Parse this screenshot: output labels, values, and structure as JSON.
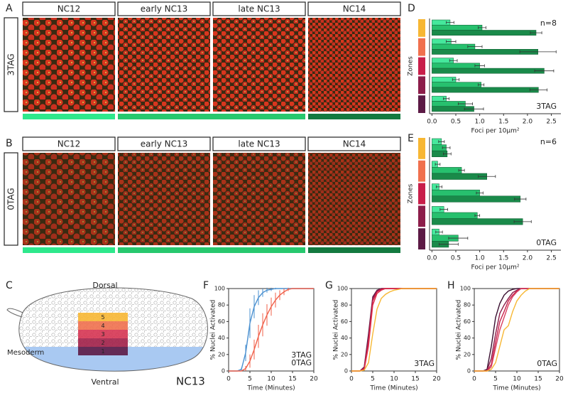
{
  "panels": {
    "a": "A",
    "b": "B",
    "c": "C",
    "d": "D",
    "e": "E",
    "f": "F",
    "g": "G",
    "h": "H"
  },
  "microscopy": [
    {
      "label": "3TAG",
      "label_color": "#4a90d0",
      "stages": [
        "NC12",
        "early NC13",
        "late NC13",
        "NC14"
      ]
    },
    {
      "label": "0TAG",
      "label_color": "#d0453a",
      "stages": [
        "NC12",
        "early NC13",
        "late NC13",
        "NC14"
      ]
    }
  ],
  "embryo": {
    "dorsal": "Dorsal",
    "ventral": "Ventral",
    "mesoderm": "Mesoderm",
    "stage": "NC13",
    "zones": [
      "5",
      "4",
      "3",
      "2",
      "1"
    ],
    "zone_colors": [
      "#f7b733",
      "#f0704e",
      "#d63452",
      "#a11f48",
      "#5c1a45"
    ]
  },
  "chart_data": [
    {
      "type": "bar",
      "orientation": "horizontal",
      "y_label": "Zones",
      "x_label": "Foci per 10μm²",
      "categories": [
        null,
        null,
        null,
        null,
        null
      ],
      "category_colors": [
        "#f7b733",
        "#f0704e",
        "#c81e4a",
        "#8c1d4a",
        "#5c1a45"
      ],
      "series": [
        {
          "color": "#45e89c",
          "values": [
            0.38,
            0.4,
            0.45,
            0.5,
            0.3
          ],
          "errors": [
            0.08,
            0.1,
            0.08,
            0.07,
            0.06
          ]
        },
        {
          "color": "#27c06e",
          "values": [
            1.05,
            0.9,
            1.0,
            1.03,
            0.7
          ],
          "errors": [
            0.08,
            0.15,
            0.1,
            0.06,
            0.15
          ]
        },
        {
          "color": "#1a8a4a",
          "values": [
            2.18,
            2.22,
            2.35,
            2.23,
            0.88
          ],
          "errors": [
            0.12,
            0.38,
            0.2,
            0.18,
            0.2
          ]
        }
      ],
      "xlim": [
        -0.05,
        2.7
      ],
      "xticks": [
        {
          "value": 0,
          "label": "0.0"
        },
        0.5,
        {
          "value": 1,
          "label": "1.0"
        },
        1.5,
        {
          "value": 2,
          "label": "2.0"
        },
        2.5
      ],
      "annotations": [
        {
          "text": "n=8",
          "color": "#222"
        },
        {
          "text": "3TAG",
          "color": "#4a90d0"
        }
      ]
    },
    {
      "type": "bar",
      "orientation": "horizontal",
      "y_label": "Zones",
      "x_label": "Foci per 10μm²",
      "categories": [
        null,
        null,
        null,
        null,
        null
      ],
      "category_colors": [
        "#f7b733",
        "#f0704e",
        "#c81e4a",
        "#8c1d4a",
        "#5c1a45"
      ],
      "series": [
        {
          "color": "#45e89c",
          "values": [
            0.2,
            0.12,
            0.15,
            0.25,
            0.15
          ],
          "errors": [
            0.06,
            0.05,
            0.06,
            0.08,
            0.07
          ]
        },
        {
          "color": "#27c06e",
          "values": [
            0.3,
            0.62,
            1.0,
            0.95,
            0.55
          ],
          "errors": [
            0.08,
            0.06,
            0.07,
            0.05,
            0.2
          ]
        },
        {
          "color": "#1a8a4a",
          "values": [
            0.32,
            1.15,
            1.85,
            1.9,
            0.35
          ],
          "errors": [
            0.08,
            0.18,
            0.12,
            0.18,
            0.2
          ]
        }
      ],
      "xlim": [
        -0.05,
        2.7
      ],
      "xticks": [
        {
          "value": 0,
          "label": "0.0"
        },
        0.5,
        {
          "value": 1,
          "label": "1.0"
        },
        1.5,
        {
          "value": 2,
          "label": "2.0"
        },
        2.5
      ],
      "annotations": [
        {
          "text": "n=6",
          "color": "#222"
        },
        {
          "text": "0TAG",
          "color": "#d0453a"
        }
      ]
    },
    {
      "type": "line",
      "y_label": "% Nuclei Activated",
      "x_label": "Time (Minutes)",
      "x": [
        0,
        1,
        2,
        3,
        4,
        5,
        6,
        7,
        8,
        9,
        10,
        11,
        12,
        13,
        14,
        15,
        16,
        17,
        18,
        19,
        20
      ],
      "series": [
        {
          "name": "3TAG",
          "color": "#4a90d0",
          "values": [
            0,
            0,
            0,
            2,
            22,
            58,
            78,
            89,
            95,
            98,
            99,
            100,
            100,
            100,
            100,
            100,
            100,
            100,
            100,
            100,
            100
          ],
          "errors": [
            0,
            0,
            0,
            2,
            10,
            18,
            14,
            9,
            5,
            3,
            2,
            1,
            0,
            0,
            0,
            0,
            0,
            0,
            0,
            0,
            0
          ]
        },
        {
          "name": "0TAG",
          "color": "#f0604a",
          "values": [
            0,
            0,
            0,
            0,
            3,
            12,
            26,
            42,
            56,
            68,
            78,
            86,
            92,
            96,
            99,
            100,
            100,
            100,
            100,
            100,
            100
          ],
          "errors": [
            0,
            0,
            0,
            0,
            3,
            8,
            12,
            14,
            14,
            13,
            11,
            9,
            6,
            4,
            2,
            0,
            0,
            0,
            0,
            0,
            0
          ]
        }
      ],
      "xlim": [
        0,
        20
      ],
      "xticks": [
        0,
        5,
        10,
        15,
        20
      ],
      "ylim": [
        0,
        100
      ],
      "yticks": [
        0,
        20,
        40,
        60,
        80,
        100
      ]
    },
    {
      "type": "line",
      "y_label": "% Nuclei Activated",
      "x_label": "Time (Minutes)",
      "x": [
        0,
        1,
        2,
        3,
        4,
        5,
        6,
        7,
        8,
        9,
        10,
        11,
        12,
        13,
        14,
        15,
        16,
        17,
        18,
        19,
        20
      ],
      "series": [
        {
          "color": "#5c1a45",
          "values": [
            0,
            0,
            0,
            5,
            45,
            90,
            98,
            100,
            100,
            100,
            100,
            100,
            100,
            100,
            100,
            100,
            100,
            100,
            100,
            100,
            100
          ]
        },
        {
          "color": "#8c1d4a",
          "values": [
            0,
            0,
            0,
            4,
            40,
            88,
            97,
            100,
            100,
            100,
            100,
            100,
            100,
            100,
            100,
            100,
            100,
            100,
            100,
            100,
            100
          ]
        },
        {
          "color": "#c81e4a",
          "values": [
            0,
            0,
            0,
            3,
            35,
            85,
            96,
            99,
            100,
            100,
            100,
            100,
            100,
            100,
            100,
            100,
            100,
            100,
            100,
            100,
            100
          ]
        },
        {
          "color": "#e0304a",
          "values": [
            0,
            0,
            0,
            2,
            30,
            80,
            94,
            98,
            100,
            100,
            100,
            100,
            100,
            100,
            100,
            100,
            100,
            100,
            100,
            100,
            100
          ]
        },
        {
          "color": "#f7b733",
          "values": [
            0,
            0,
            0,
            1,
            10,
            45,
            75,
            88,
            93,
            96,
            98,
            99,
            100,
            100,
            100,
            100,
            100,
            100,
            100,
            100,
            100
          ]
        }
      ],
      "xlim": [
        0,
        20
      ],
      "xticks": [
        0,
        5,
        10,
        15,
        20
      ],
      "ylim": [
        0,
        100
      ],
      "yticks": [
        0,
        20,
        40,
        60,
        80,
        100
      ],
      "annotations": [
        {
          "text": "3TAG",
          "color": "#4a90d0"
        }
      ]
    },
    {
      "type": "line",
      "y_label": "% Nuclei Activated",
      "x_label": "Time (Minutes)",
      "x": [
        0,
        1,
        2,
        3,
        4,
        5,
        6,
        7,
        8,
        9,
        10,
        11,
        12,
        13,
        14,
        15,
        16,
        17,
        18,
        19,
        20
      ],
      "series": [
        {
          "color": "#3a0f30",
          "values": [
            0,
            0,
            0,
            2,
            30,
            65,
            82,
            92,
            97,
            99,
            100,
            100,
            100,
            100,
            100,
            100,
            100,
            100,
            100,
            100,
            100
          ]
        },
        {
          "color": "#8c1d4a",
          "values": [
            0,
            0,
            0,
            1,
            15,
            45,
            70,
            80,
            88,
            95,
            98,
            100,
            100,
            100,
            100,
            100,
            100,
            100,
            100,
            100,
            100
          ]
        },
        {
          "color": "#c81e4a",
          "values": [
            0,
            0,
            0,
            0,
            8,
            35,
            60,
            72,
            85,
            92,
            97,
            100,
            100,
            100,
            100,
            100,
            100,
            100,
            100,
            100,
            100
          ]
        },
        {
          "color": "#d94060",
          "values": [
            0,
            0,
            0,
            0,
            5,
            28,
            50,
            65,
            80,
            90,
            96,
            100,
            100,
            100,
            100,
            100,
            100,
            100,
            100,
            100,
            100
          ]
        },
        {
          "color": "#f7b733",
          "values": [
            0,
            0,
            0,
            0,
            2,
            10,
            30,
            50,
            55,
            72,
            85,
            92,
            97,
            100,
            100,
            100,
            100,
            100,
            100,
            100,
            100
          ]
        }
      ],
      "xlim": [
        0,
        20
      ],
      "xticks": [
        0,
        5,
        10,
        15,
        20
      ],
      "ylim": [
        0,
        100
      ],
      "yticks": [
        0,
        20,
        40,
        60,
        80,
        100
      ],
      "annotations": [
        {
          "text": "0TAG",
          "color": "#d0453a"
        }
      ]
    }
  ]
}
